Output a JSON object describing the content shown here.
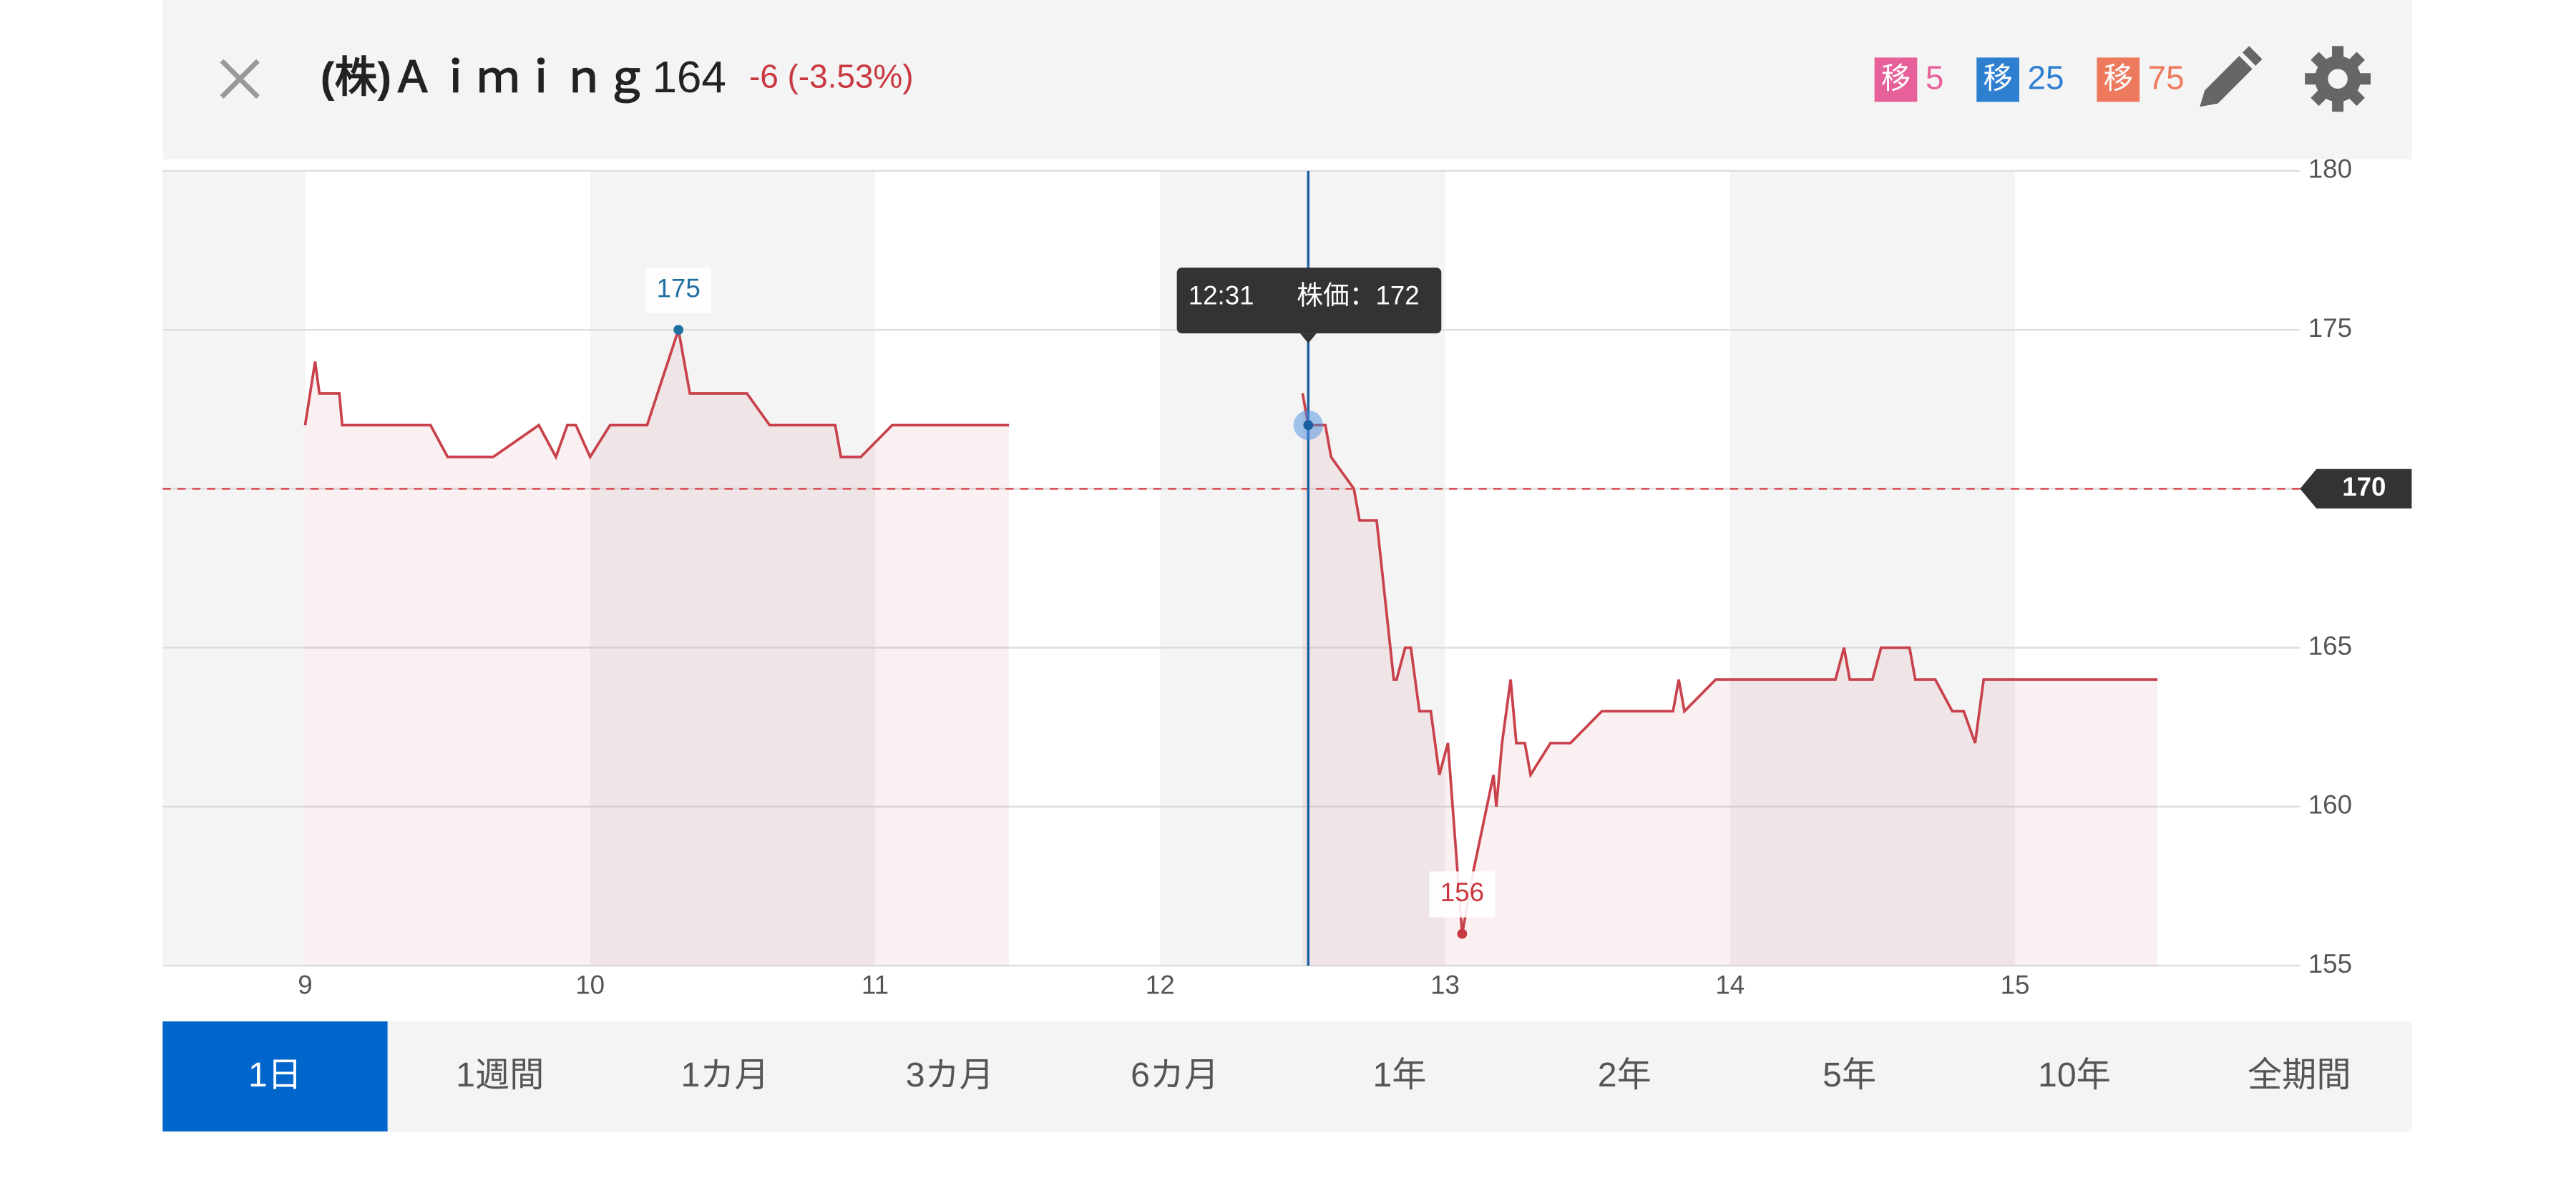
{
  "header": {
    "title": "(株)Ａｉｍｉｎｇ",
    "price": "164",
    "change": "-6 (-3.53%)",
    "legend": [
      {
        "badge": "移",
        "label": "5",
        "color": "#e8609a"
      },
      {
        "badge": "移",
        "label": "25",
        "color": "#2f7fd1"
      },
      {
        "badge": "移",
        "label": "75",
        "color": "#ee7a5e"
      }
    ]
  },
  "chart_data": {
    "type": "line",
    "x": [
      9.0,
      9.035,
      9.05,
      9.12,
      9.13,
      9.44,
      9.5,
      9.66,
      9.82,
      9.88,
      9.92,
      9.95,
      10.0,
      10.07,
      10.2,
      10.31,
      10.35,
      10.55,
      10.63,
      10.86,
      10.88,
      10.95,
      11.06,
      11.47,
      12.0,
      12.5,
      12.52,
      12.58,
      12.6,
      12.68,
      12.7,
      12.76,
      12.82,
      12.83,
      12.86,
      12.88,
      12.91,
      12.95,
      12.98,
      13.01,
      13.06,
      13.1,
      13.17,
      13.18,
      13.2,
      13.23,
      13.25,
      13.28,
      13.3,
      13.37,
      13.44,
      13.55,
      13.8,
      13.82,
      13.84,
      13.95,
      14.37,
      14.4,
      14.42,
      14.5,
      14.53,
      14.63,
      14.65,
      14.72,
      14.78,
      14.82,
      14.86,
      14.89,
      15.5
    ],
    "series": [
      {
        "name": "株価",
        "color": "#c8414b",
        "values": [
          172,
          174,
          173,
          173,
          172,
          172,
          171,
          171,
          172,
          171,
          172,
          172,
          171,
          172,
          172,
          175,
          173,
          173,
          172,
          172,
          171,
          171,
          172,
          172,
          null,
          173,
          172,
          172,
          171,
          170,
          169,
          169,
          164,
          164,
          165,
          165,
          163,
          163,
          161,
          162,
          156,
          158,
          161,
          160,
          162,
          164,
          162,
          162,
          161,
          162,
          162,
          163,
          163,
          164,
          163,
          164,
          164,
          165,
          164,
          164,
          165,
          165,
          164,
          164,
          163,
          163,
          162,
          164,
          164
        ]
      }
    ],
    "xlim": [
      8.5,
      16
    ],
    "xticks": [
      9,
      10,
      11,
      12,
      13,
      14,
      15
    ],
    "ylim": [
      155,
      180
    ],
    "yticks": [
      155,
      160,
      165,
      170,
      175,
      180
    ],
    "reference_line": 170,
    "cursor": {
      "x": 12.52,
      "y": 172,
      "time": "12:31",
      "label": "株価：172"
    },
    "grid": true
  },
  "tabs": {
    "items": [
      "1日",
      "1週間",
      "1カ月",
      "3カ月",
      "6カ月",
      "1年",
      "2年",
      "5年",
      "10年",
      "全期間"
    ],
    "active": "1日"
  }
}
